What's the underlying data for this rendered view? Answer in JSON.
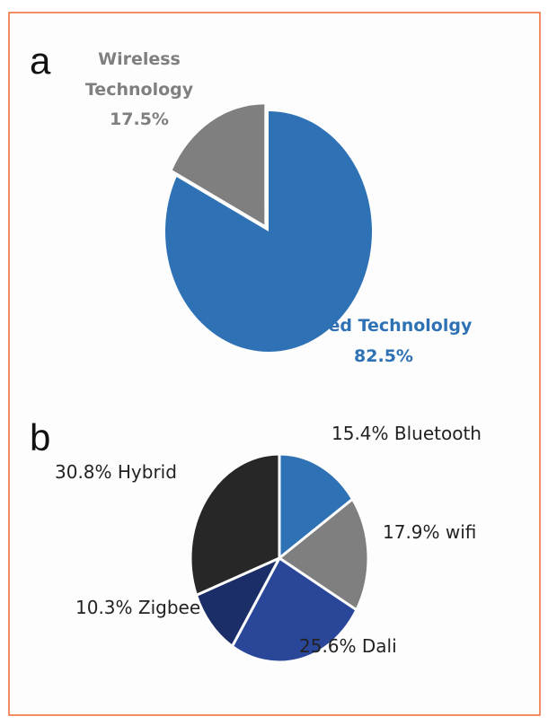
{
  "chart_data": [
    {
      "type": "pie",
      "panel": "a",
      "slices": [
        {
          "name": "Wired Technololgy",
          "value": 82.5,
          "label": "82.5%",
          "color": "#2e72b5"
        },
        {
          "name_lines": [
            "Wireless",
            "Technology"
          ],
          "name": "Wireless Technology",
          "value": 17.5,
          "label": "17.5%",
          "color": "#7f7f7f",
          "exploded": true
        }
      ]
    },
    {
      "type": "pie",
      "panel": "b",
      "slices": [
        {
          "name": "Bluetooth",
          "value": 15.4,
          "label": "15.4% Bluetooth",
          "color": "#2e72b5"
        },
        {
          "name": "wifi",
          "value": 17.9,
          "label": "17.9% wifi",
          "color": "#7f7f7f"
        },
        {
          "name": "Dali",
          "value": 25.6,
          "label": "25.6% Dali",
          "color": "#2a4699"
        },
        {
          "name": "Zigbee",
          "value": 10.3,
          "label": "10.3% Zigbee",
          "color": "#1b2e68"
        },
        {
          "name": "Hybrid",
          "value": 30.8,
          "label": "30.8% Hybrid",
          "color": "#272727"
        }
      ]
    }
  ]
}
